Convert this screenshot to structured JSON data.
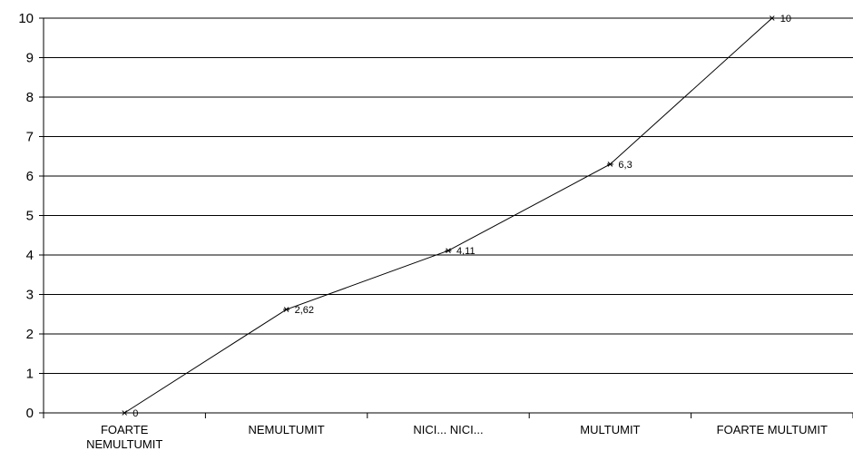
{
  "chart_data": {
    "type": "line",
    "title": "",
    "xlabel": "",
    "ylabel": "",
    "categories": [
      [
        "FOARTE",
        "NEMULTUMIT"
      ],
      [
        "NEMULTUMIT"
      ],
      [
        "NICI... NICI..."
      ],
      [
        "MULTUMIT"
      ],
      [
        "FOARTE MULTUMIT"
      ]
    ],
    "series": [
      {
        "values": [
          0,
          2.62,
          4.11,
          6.3,
          10
        ],
        "data_labels": [
          "0",
          "2,62",
          "4,11",
          "6,3",
          "10"
        ]
      }
    ],
    "ylim": [
      0,
      10
    ],
    "yticks": [
      0,
      1,
      2,
      3,
      4,
      5,
      6,
      7,
      8,
      9,
      10
    ],
    "grid": true,
    "legend": "none",
    "line_color": "#000000",
    "grid_color": "#000000",
    "marker": "asterisk"
  }
}
